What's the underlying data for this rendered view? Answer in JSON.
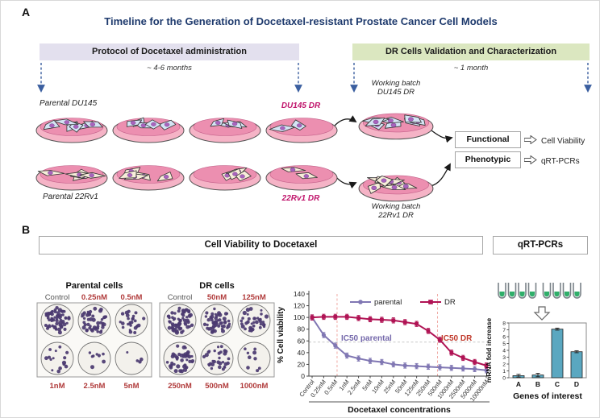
{
  "colors": {
    "title": "#1e3a6d",
    "navy_arrow": "#3b5fa0",
    "magenta": "#c0156c",
    "lavender_bg": "#e3e0ee",
    "green_bg": "#dbe7c0",
    "conc_label": "#b03a3a",
    "control_label": "#555555",
    "parental_line": "#8077b3",
    "dr_line": "#b01354",
    "bar_fill": "#5aa7c0",
    "colony_dot": "#4b3a70",
    "dish_body": "#f5b3c6",
    "dish_media": "#ec8fb0",
    "du145_cell": "#d4e4f4",
    "rv1_cell": "#f7eed9",
    "nucleus": "#a863bd",
    "tube_green": "#2fae6a"
  },
  "panelA": {
    "label": "A",
    "title": "Timeline for the Generation of Docetaxel-resistant Prostate Cancer Cell Models",
    "protocol_header": "Protocol of Docetaxel administration",
    "protocol_duration": "~ 4-6 months",
    "validation_header": "DR Cells Validation and Characterization",
    "validation_duration": "~ 1 month",
    "parental_du145_label": "Parental DU145",
    "du145_dr_label": "DU145 DR",
    "parental_22rv1_label": "Parental 22Rv1",
    "rv1_dr_label": "22Rv1 DR",
    "working_batch_du145": [
      "Working batch",
      "DU145 DR"
    ],
    "working_batch_22rv1": [
      "Working batch",
      "22Rv1 DR"
    ],
    "functional_label": "Functional",
    "functional_output": "Cell Viability",
    "phenotypic_label": "Phenotypic",
    "phenotypic_output": "qRT-PCRs",
    "dish_cell_counts": [
      6,
      5,
      4,
      2
    ],
    "working_cell_count": 8
  },
  "panelB": {
    "label": "B",
    "viability_header": "Cell Viability to Docetaxel",
    "qrtpcr_header": "qRT-PCRs",
    "colony_assays": [
      {
        "title": "Parental cells",
        "top_labels": [
          "Control",
          "0.25nM",
          "0.5nM"
        ],
        "bottom_labels": [
          "1nM",
          "2.5nM",
          "5nM"
        ],
        "colony_counts": [
          60,
          45,
          26,
          15,
          8,
          4
        ]
      },
      {
        "title": "DR cells",
        "top_labels": [
          "Control",
          "50nM",
          "125nM"
        ],
        "bottom_labels": [
          "250nM",
          "500nM",
          "1000nM"
        ],
        "colony_counts": [
          60,
          50,
          38,
          42,
          30,
          9
        ]
      }
    ]
  },
  "chart_data": [
    {
      "type": "line",
      "title": "Docetaxel dose-response of parental vs DR cells",
      "categories": [
        "Control",
        "0.25nM",
        "0.5nM",
        "1nM",
        "2.5nM",
        "5nM",
        "10nM",
        "25nM",
        "50nM",
        "125nM",
        "250nM",
        "500nM",
        "1000nM",
        "2500nM",
        "5000nM",
        "10000nM"
      ],
      "series": [
        {
          "name": "parental",
          "marker": "circle",
          "values": [
            100,
            70,
            52,
            35,
            30,
            26,
            24,
            20,
            18,
            17,
            16,
            15,
            14,
            13,
            12,
            10
          ]
        },
        {
          "name": "DR",
          "marker": "square",
          "values": [
            100,
            101,
            101,
            101,
            99,
            97,
            96,
            95,
            92,
            89,
            77,
            62,
            40,
            31,
            24,
            18
          ]
        }
      ],
      "error": 3,
      "ylabel": "% Cell viability",
      "xlabel": "Docetaxel concentrations",
      "ylim": [
        0,
        140
      ],
      "yticks": [
        0,
        20,
        40,
        60,
        80,
        100,
        120,
        140
      ],
      "grid": false,
      "legend_position": "top-inside",
      "annotations": [
        {
          "type": "vline",
          "x_index": 2.15,
          "text": "IC50 parental",
          "text_color": "#7468ab",
          "line_color": "#f0aaa4"
        },
        {
          "type": "vline",
          "x_index": 10.8,
          "text": "IC50 DR",
          "text_color": "#c0392b",
          "line_color": "#f0aaa4"
        },
        {
          "type": "hline",
          "y": 58,
          "line_color": "#c9c9c9"
        }
      ]
    },
    {
      "type": "bar",
      "title": "qRT-PCR mRNA fold increase",
      "categories": [
        "A",
        "B",
        "C",
        "D"
      ],
      "values": [
        0.3,
        0.4,
        7.1,
        3.8
      ],
      "errors": [
        0.2,
        0.25,
        0.15,
        0.15
      ],
      "ylabel": "mRNA fold increase",
      "xlabel": "Genes of interest",
      "ylim": [
        0,
        8
      ],
      "yticks": [
        0,
        1,
        2,
        3,
        4,
        5,
        6,
        7,
        8
      ],
      "legend_position": "none",
      "grid": false
    }
  ]
}
